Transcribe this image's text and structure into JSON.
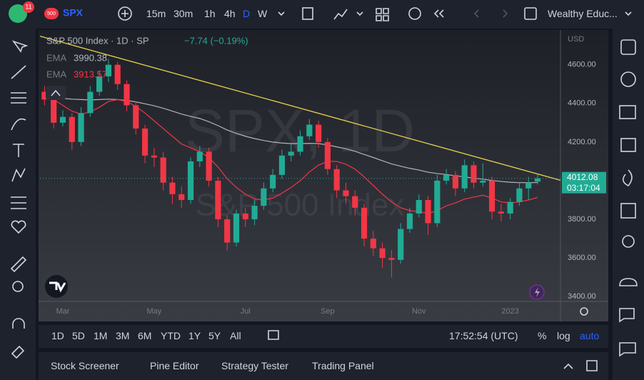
{
  "header": {
    "notification_count": "11",
    "symbol_badge": "500",
    "symbol": "SPX",
    "intervals": [
      "15m",
      "30m",
      "1h",
      "4h",
      "D",
      "W"
    ],
    "active_interval": 4,
    "account": "Wealthy Educ..."
  },
  "chart_data": {
    "type": "candlestick",
    "title": "S&P 500 Index · 1D · SP",
    "change": "−7.74 (−0.19%)",
    "watermark": [
      "SPX, 1D",
      "S&P 500 Index"
    ],
    "currency": "USD",
    "last_price_countdown": "03:17:04",
    "categories": [
      null,
      null,
      "Mar",
      null,
      null,
      null,
      null,
      null,
      null,
      null,
      null,
      null,
      "May",
      null,
      null,
      null,
      null,
      null,
      null,
      null,
      null,
      null,
      "Jul",
      null,
      null,
      null,
      null,
      null,
      null,
      null,
      null,
      "Sep",
      null,
      null,
      null,
      null,
      null,
      null,
      null,
      null,
      null,
      "Nov",
      null,
      null,
      null,
      null,
      null,
      null,
      null,
      null,
      null,
      "2023",
      null,
      null,
      null
    ],
    "open": [
      4460,
      4420,
      4300,
      4330,
      4200,
      4350,
      4460,
      4540,
      4600,
      4500,
      4390,
      4270,
      4130,
      4120,
      3990,
      3930,
      3900,
      4100,
      4150,
      4000,
      3800,
      3680,
      3830,
      3800,
      3870,
      3960,
      4030,
      4130,
      4150,
      4230,
      4290,
      4200,
      4060,
      3950,
      3920,
      3860,
      3700,
      3650,
      3600,
      3590,
      3750,
      3830,
      3900,
      3780,
      4000,
      4030,
      3960,
      4080,
      3990,
      4000,
      3840,
      3830,
      3890,
      3960,
      3995
    ],
    "high": [
      4490,
      4440,
      4365,
      4350,
      4380,
      4490,
      4570,
      4630,
      4615,
      4520,
      4410,
      4290,
      4170,
      4150,
      4020,
      3970,
      4120,
      4180,
      4170,
      4020,
      3820,
      3850,
      3860,
      3900,
      3990,
      4060,
      4160,
      4190,
      4260,
      4320,
      4310,
      4220,
      4080,
      3990,
      3950,
      3880,
      3740,
      3680,
      3640,
      3780,
      3860,
      3930,
      3920,
      4030,
      4060,
      4050,
      4110,
      4100,
      4090,
      4020,
      3880,
      3910,
      3990,
      4020,
      4035
    ],
    "low": [
      4390,
      4270,
      4280,
      4160,
      4180,
      4330,
      4440,
      4510,
      4470,
      4360,
      4240,
      4090,
      4070,
      3950,
      3880,
      3860,
      3880,
      4070,
      3970,
      3760,
      3640,
      3660,
      3760,
      3770,
      3850,
      3940,
      4010,
      4100,
      4130,
      4210,
      4170,
      4030,
      3910,
      3880,
      3820,
      3660,
      3610,
      3550,
      3500,
      3570,
      3730,
      3810,
      3720,
      3760,
      3980,
      3920,
      3940,
      3960,
      3970,
      3800,
      3790,
      3800,
      3870,
      3900,
      3980
    ],
    "close": [
      4420,
      4300,
      4330,
      4200,
      4350,
      4460,
      4540,
      4600,
      4500,
      4390,
      4270,
      4130,
      4120,
      3990,
      3930,
      3900,
      4100,
      4150,
      4000,
      3800,
      3680,
      3830,
      3800,
      3870,
      3960,
      4030,
      4130,
      4150,
      4230,
      4290,
      4200,
      4060,
      3950,
      3920,
      3860,
      3700,
      3650,
      3600,
      3590,
      3750,
      3830,
      3900,
      3780,
      4000,
      4030,
      3960,
      4080,
      3990,
      4000,
      3840,
      3830,
      3890,
      3960,
      3990,
      4012.08
    ],
    "up_color": "#22ab94",
    "down_color": "#f23645",
    "ema": [
      {
        "name": "EMA",
        "color": "#b2b5be",
        "values": [
          4430,
          4428,
          4426,
          4422,
          4420,
          4418,
          4420,
          4422,
          4420,
          4415,
          4408,
          4398,
          4388,
          4375,
          4360,
          4345,
          4333,
          4322,
          4305,
          4285,
          4262,
          4245,
          4230,
          4218,
          4208,
          4200,
          4195,
          4192,
          4192,
          4193,
          4192,
          4185,
          4175,
          4165,
          4152,
          4136,
          4120,
          4103,
          4087,
          4075,
          4064,
          4055,
          4044,
          4037,
          4032,
          4025,
          4020,
          4013,
          4008,
          4001,
          3996,
          3992,
          3990,
          3990,
          3990.38
        ]
      },
      {
        "name": "EMA",
        "color": "#f23645",
        "values": [
          4450,
          4420,
          4390,
          4360,
          4345,
          4355,
          4380,
          4410,
          4420,
          4410,
          4385,
          4350,
          4310,
          4270,
          4230,
          4190,
          4170,
          4150,
          4120,
          4070,
          4010,
          3965,
          3930,
          3905,
          3900,
          3910,
          3935,
          3965,
          4000,
          4045,
          4080,
          4100,
          4100,
          4085,
          4060,
          4020,
          3975,
          3930,
          3890,
          3860,
          3845,
          3840,
          3830,
          3845,
          3870,
          3885,
          3905,
          3915,
          3925,
          3910,
          3890,
          3885,
          3890,
          3900,
          3913.57
        ]
      }
    ],
    "trendline": {
      "color": "#e5d24a",
      "start": 4748,
      "end": 4002
    },
    "ylim": [
      3375,
      4780
    ],
    "yticks": [
      {
        "value": 3400,
        "label": "3400.00"
      },
      {
        "value": 3600,
        "label": "3600.00"
      },
      {
        "value": 3800,
        "label": "3800.00"
      },
      {
        "value": 4000,
        "label": "4000.00"
      },
      {
        "value": 4200,
        "label": "4200.00"
      },
      {
        "value": 4400,
        "label": "4400.00"
      },
      {
        "value": 4600,
        "label": "4600.00"
      }
    ],
    "grid": false
  },
  "range_bar": {
    "ranges": [
      "1D",
      "5D",
      "1M",
      "3M",
      "6M",
      "YTD",
      "1Y",
      "5Y",
      "All"
    ],
    "clock": "17:52:54 (UTC)",
    "percent": "%",
    "log": "log",
    "auto": "auto"
  },
  "panel_tabs": [
    "Stock Screener",
    "Pine Editor",
    "Strategy Tester",
    "Trading Panel"
  ]
}
